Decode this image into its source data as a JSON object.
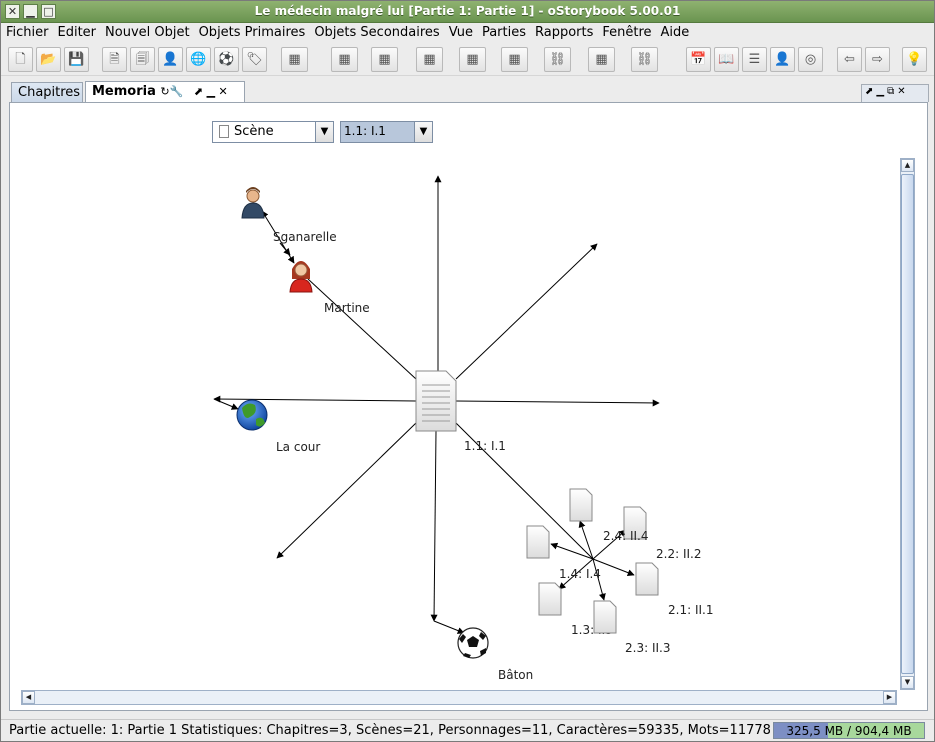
{
  "window": {
    "title": "Le médecin malgré lui [Partie 1: Partie 1] - oStorybook 5.00.01",
    "close_glyph": "✕",
    "minimize_glyph": "▁",
    "maximize_glyph": "□"
  },
  "menu": [
    {
      "label": "Fichier"
    },
    {
      "label": "Editer"
    },
    {
      "label": "Nouvel Objet"
    },
    {
      "label": "Objets Primaires"
    },
    {
      "label": "Objets Secondaires"
    },
    {
      "label": "Vue"
    },
    {
      "label": "Parties"
    },
    {
      "label": "Rapports"
    },
    {
      "label": "Fenêtre"
    },
    {
      "label": "Aide"
    }
  ],
  "toolbar": [
    {
      "name": "new-file-icon",
      "glyph": "🗋"
    },
    {
      "name": "open-folder-icon",
      "glyph": "📂"
    },
    {
      "name": "save-icon",
      "glyph": "💾"
    },
    {
      "name": "new-chapter-icon",
      "glyph": "🗎"
    },
    {
      "name": "new-scene-icon",
      "glyph": "🗐"
    },
    {
      "name": "new-person-icon",
      "glyph": "👤"
    },
    {
      "name": "new-location-icon",
      "glyph": "🌐"
    },
    {
      "name": "new-item-icon",
      "glyph": "⚽"
    },
    {
      "name": "new-tag-icon",
      "glyph": "🏷"
    },
    {
      "name": "table-chapters-icon",
      "glyph": "▦"
    },
    {
      "name": "table-scenes-icon",
      "glyph": "▦"
    },
    {
      "name": "table-persons-icon",
      "glyph": "▦"
    },
    {
      "name": "table-groups-icon",
      "glyph": "▦"
    },
    {
      "name": "table-locations-icon",
      "glyph": "▦"
    },
    {
      "name": "table-items-icon",
      "glyph": "▦"
    },
    {
      "name": "item-links-icon",
      "glyph": "⛓"
    },
    {
      "name": "table-tags-icon",
      "glyph": "▦"
    },
    {
      "name": "tag-links-icon",
      "glyph": "⛓"
    },
    {
      "name": "calendar-icon",
      "glyph": "📅"
    },
    {
      "name": "book-view-icon",
      "glyph": "📖"
    },
    {
      "name": "manage-view-icon",
      "glyph": "☰"
    },
    {
      "name": "reading-view-icon",
      "glyph": "👤"
    },
    {
      "name": "memoria-icon",
      "glyph": "◎"
    },
    {
      "name": "previous-icon",
      "glyph": "⇦"
    },
    {
      "name": "next-icon",
      "glyph": "⇨"
    },
    {
      "name": "idea-icon",
      "glyph": "💡"
    }
  ],
  "tabs": {
    "chapitres": "Chapitres",
    "memoria": "Memoria",
    "memoria_controls": "↻🔧",
    "tab_icons": "⬈ ▁ ✕",
    "panel_controls": "⬈▁⧉✕"
  },
  "memoria": {
    "type_select": {
      "value": "Scène"
    },
    "scene_select": {
      "value": "1.1: I.1"
    },
    "center_scene": "1.1: I.1",
    "characters": [
      "Sganarelle",
      "Martine"
    ],
    "location": "La cour",
    "item": "Bâton",
    "cluster_scenes": [
      "2.4: II.4",
      "2.2: II.2",
      "1.4: I.4",
      "2.1: II.1",
      "1.3: I.3",
      "2.3: II.3"
    ]
  },
  "status": {
    "text": "Partie actuelle: 1: Partie 1  Statistiques: Chapitres=3,  Scènes=21,  Personnages=11,  Caractères=59335,  Mots=11778",
    "memory_label": "325,5 MB / 904,4 MB",
    "memory_used_fraction": 0.36
  },
  "colors": {
    "titlebar": "#6a9450",
    "tab_active": "#ffffff",
    "memory_used": "#7d8fc4",
    "memory_free": "#a8d89c"
  }
}
